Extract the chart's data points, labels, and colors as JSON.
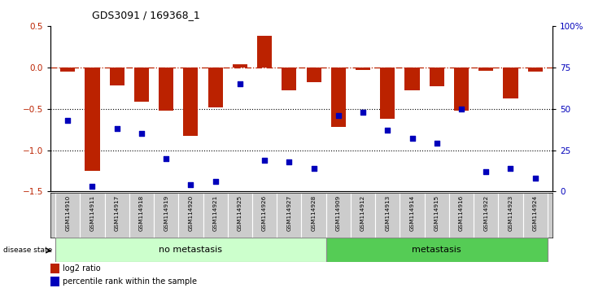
{
  "title": "GDS3091 / 169368_1",
  "samples": [
    "GSM114910",
    "GSM114911",
    "GSM114917",
    "GSM114918",
    "GSM114919",
    "GSM114920",
    "GSM114921",
    "GSM114925",
    "GSM114926",
    "GSM114927",
    "GSM114928",
    "GSM114909",
    "GSM114912",
    "GSM114913",
    "GSM114914",
    "GSM114915",
    "GSM114916",
    "GSM114922",
    "GSM114923",
    "GSM114924"
  ],
  "log2_ratio": [
    -0.05,
    -1.25,
    -0.22,
    -0.42,
    -0.52,
    -0.83,
    -0.48,
    0.04,
    0.38,
    -0.28,
    -0.18,
    -0.72,
    -0.03,
    -0.62,
    -0.28,
    -0.23,
    -0.52,
    -0.04,
    -0.38,
    -0.05
  ],
  "percentile": [
    43,
    3,
    38,
    35,
    20,
    4,
    6,
    65,
    19,
    18,
    14,
    46,
    48,
    37,
    32,
    29,
    50,
    12,
    14,
    8
  ],
  "no_metastasis_count": 11,
  "metastasis_count": 9,
  "ylim_left": [
    -1.5,
    0.5
  ],
  "ylim_right": [
    0,
    100
  ],
  "bar_color": "#BB2200",
  "dot_color": "#0000BB",
  "bg_color": "#FFFFFF",
  "plot_bg": "#FFFFFF",
  "no_meta_color": "#CCFFCC",
  "meta_color": "#55CC55",
  "label_color_left": "#BB2200",
  "label_color_right": "#0000BB",
  "sample_box_color": "#CCCCCC",
  "sample_box_edge": "#FFFFFF"
}
